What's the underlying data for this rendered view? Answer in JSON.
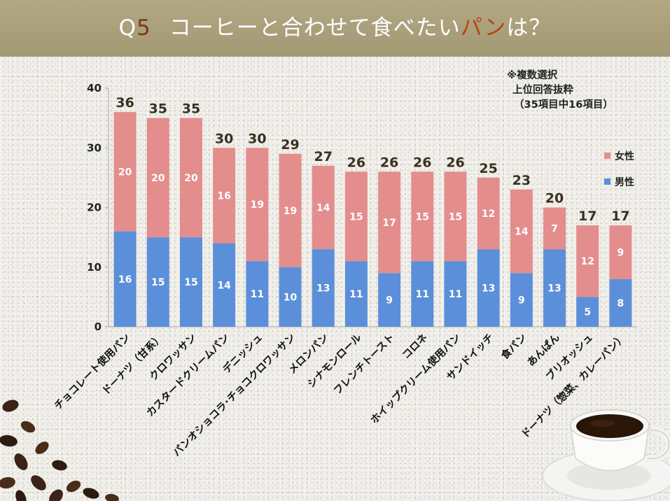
{
  "header": {
    "q": "Q",
    "num": "5",
    "text_before": "コーヒーと合わせて食べたい",
    "highlight": "パン",
    "text_after": "は？"
  },
  "note": {
    "line1": "※複数選択",
    "line2": "上位回答抜粋",
    "line3": "（35項目中16項目）"
  },
  "colors": {
    "female": "#e48d8d",
    "male": "#5b8fd9",
    "axis": "#aaaaaa"
  },
  "chart_data": {
    "type": "bar",
    "stacked": true,
    "ylim": [
      0,
      40
    ],
    "yticks": [
      0,
      10,
      20,
      30,
      40
    ],
    "grid": false,
    "legend": "right",
    "categories": [
      "チョコレート使用パン",
      "ドーナツ（甘系）",
      "クロワッサン",
      "カスタードクリームパン",
      "デニッシュ",
      "パンオショコラ･チョコクロワッサン",
      "メロンパン",
      "シナモンロール",
      "フレンチトースト",
      "コロネ",
      "ホイップクリーム使用パン",
      "サンドイッチ",
      "食パン",
      "あんぱん",
      "ブリオッシュ",
      "ドーナツ（惣菜、カレーパン）"
    ],
    "totals": [
      36,
      35,
      35,
      30,
      30,
      29,
      27,
      26,
      26,
      26,
      26,
      25,
      23,
      20,
      17,
      17
    ],
    "series": [
      {
        "name": "男性",
        "values": [
          16,
          15,
          15,
          14,
          11,
          10,
          13,
          11,
          9,
          11,
          11,
          13,
          9,
          13,
          5,
          8
        ]
      },
      {
        "name": "女性",
        "values": [
          20,
          20,
          20,
          16,
          19,
          19,
          14,
          15,
          17,
          15,
          15,
          12,
          14,
          7,
          12,
          9
        ]
      }
    ]
  }
}
